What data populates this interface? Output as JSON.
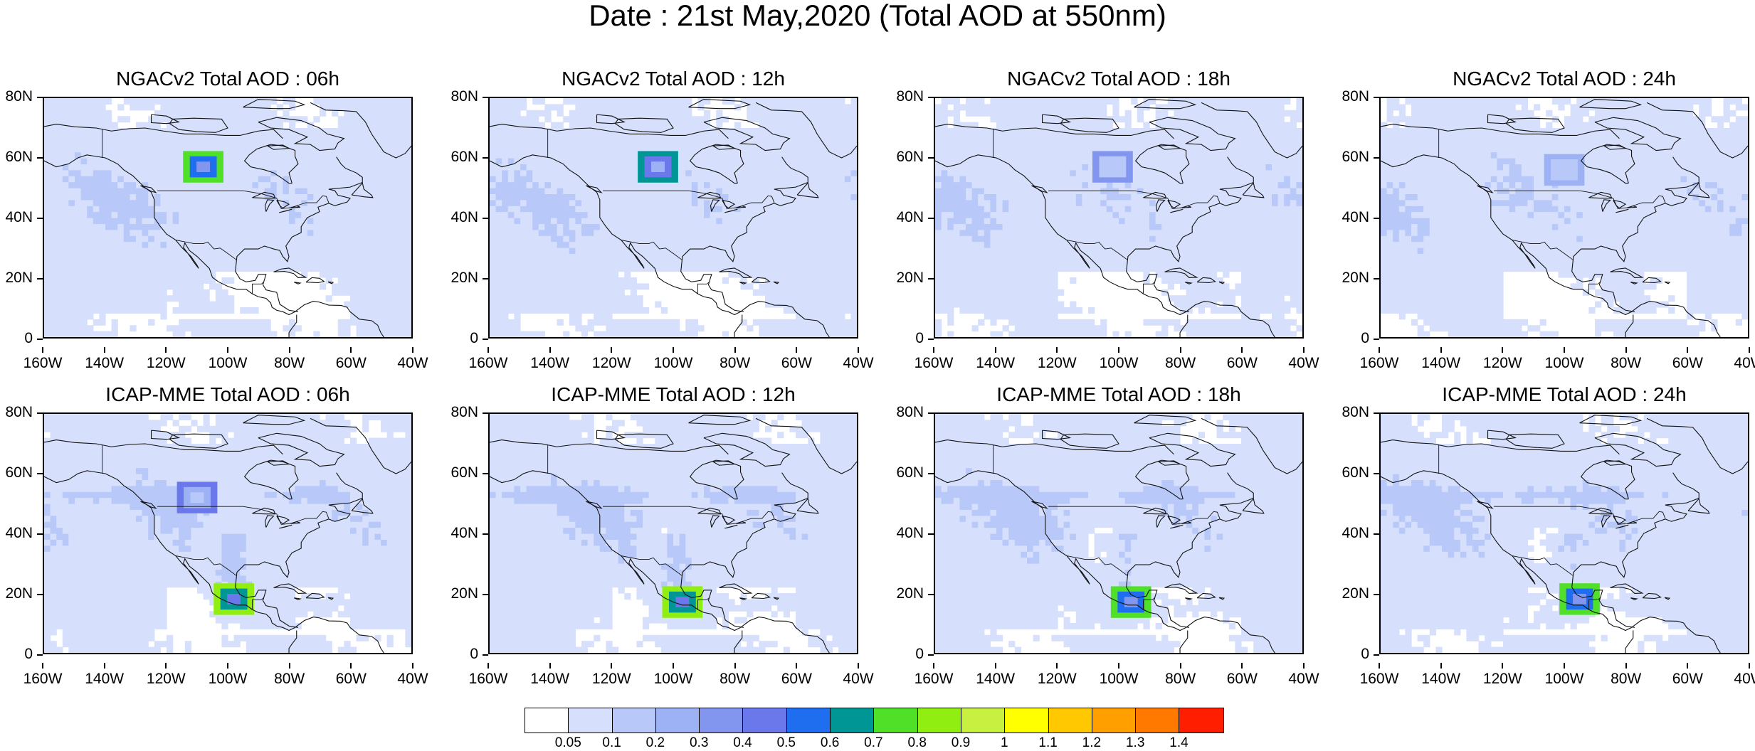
{
  "figure": {
    "title": "Date : 21st May,2020 (Total AOD at 550nm)"
  },
  "axes": {
    "y_ticks": [
      "80N",
      "60N",
      "40N",
      "20N",
      "0"
    ],
    "x_ticks": [
      "160W",
      "140W",
      "120W",
      "100W",
      "80W",
      "60W",
      "40W"
    ],
    "lon_range": [
      -160,
      -40
    ],
    "lat_range": [
      0,
      80
    ]
  },
  "panels": [
    {
      "title": "NGACv2 Total AOD : 06h",
      "model": "NGACv2",
      "forecast_hour": "06h",
      "hotspots": [
        {
          "lon": -108,
          "lat": 57,
          "level": 8
        }
      ]
    },
    {
      "title": "NGACv2 Total AOD : 12h",
      "model": "NGACv2",
      "forecast_hour": "12h",
      "hotspots": [
        {
          "lon": -105,
          "lat": 57,
          "level": 7
        }
      ]
    },
    {
      "title": "NGACv2 Total AOD : 18h",
      "model": "NGACv2",
      "forecast_hour": "18h",
      "hotspots": [
        {
          "lon": -102,
          "lat": 57,
          "level": 4
        }
      ]
    },
    {
      "title": "NGACv2 Total AOD : 24h",
      "model": "NGACv2",
      "forecast_hour": "24h",
      "hotspots": [
        {
          "lon": -100,
          "lat": 56,
          "level": 3
        }
      ]
    },
    {
      "title": "ICAP-MME Total AOD : 06h",
      "model": "ICAP-MME",
      "forecast_hour": "06h",
      "hotspots": [
        {
          "lon": -98,
          "lat": 18,
          "level": 9
        },
        {
          "lon": -110,
          "lat": 52,
          "level": 5
        }
      ]
    },
    {
      "title": "ICAP-MME Total AOD : 12h",
      "model": "ICAP-MME",
      "forecast_hour": "12h",
      "hotspots": [
        {
          "lon": -97,
          "lat": 17,
          "level": 9
        }
      ]
    },
    {
      "title": "ICAP-MME Total AOD : 18h",
      "model": "ICAP-MME",
      "forecast_hour": "18h",
      "hotspots": [
        {
          "lon": -96,
          "lat": 17,
          "level": 8
        }
      ]
    },
    {
      "title": "ICAP-MME Total AOD : 24h",
      "model": "ICAP-MME",
      "forecast_hour": "24h",
      "hotspots": [
        {
          "lon": -95,
          "lat": 18,
          "level": 8
        }
      ]
    }
  ],
  "colorbar": {
    "labels": [
      "0.05",
      "0.1",
      "0.2",
      "0.3",
      "0.4",
      "0.5",
      "0.6",
      "0.7",
      "0.8",
      "0.9",
      "1",
      "1.1",
      "1.2",
      "1.3",
      "1.4"
    ],
    "colors": [
      "#ffffff",
      "#d6e0fc",
      "#b8c8f8",
      "#9cb2f4",
      "#8296f0",
      "#6a78ec",
      "#1f6ef0",
      "#009696",
      "#50e028",
      "#90ee10",
      "#c8f040",
      "#ffff00",
      "#ffc800",
      "#ffa000",
      "#ff7800",
      "#ff1e00"
    ]
  }
}
